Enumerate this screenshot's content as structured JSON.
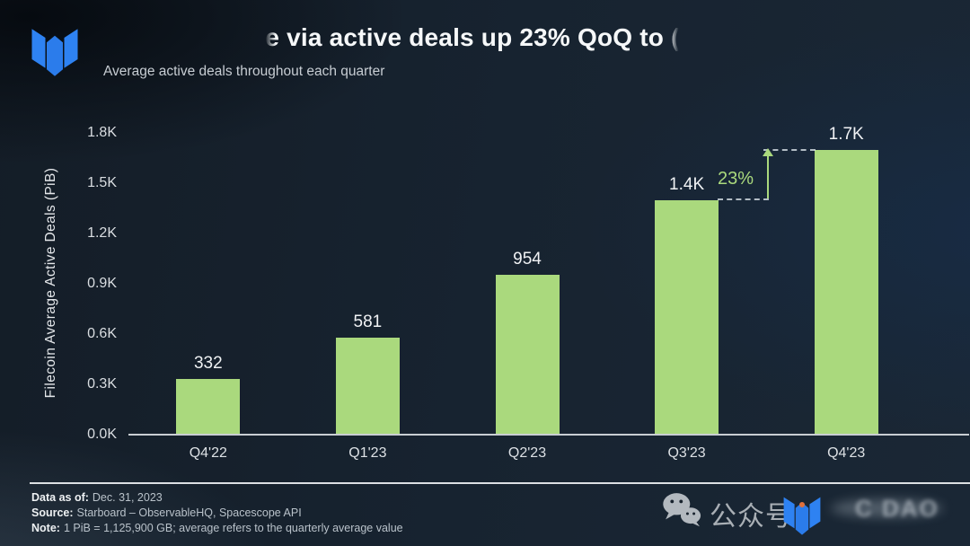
{
  "header": {
    "title_visible": "e via active deals up 23% QoQ to",
    "title_fragment": "(",
    "subtitle": "Average active deals throughout each quarter"
  },
  "chart_data": {
    "type": "bar",
    "categories": [
      "Q4'22",
      "Q1'23",
      "Q2'23",
      "Q3'23",
      "Q4'23"
    ],
    "values": [
      332,
      581,
      954,
      1400,
      1700
    ],
    "bar_labels": [
      "332",
      "581",
      "954",
      "1.4K",
      "1.7K"
    ],
    "ylabel": "Filecoin Average Active Deals (PiB)",
    "ytick_labels": [
      "0.0K",
      "0.3K",
      "0.6K",
      "0.9K",
      "1.2K",
      "1.5K",
      "1.8K"
    ],
    "ytick_values": [
      0,
      300,
      600,
      900,
      1200,
      1500,
      1800
    ],
    "ylim": [
      0,
      1800
    ],
    "bar_color": "#aad97d",
    "grid": false,
    "legend": false,
    "annotation": {
      "label": "23%",
      "from_category": "Q3'23",
      "to_category": "Q4'23",
      "color": "#aad97d"
    }
  },
  "footer": {
    "data_as_of_label": "Data as of:",
    "data_as_of_value": "Dec. 31, 2023",
    "source_label": "Source:",
    "source_value": "Starboard – ObservableHQ, Spacescope API",
    "note_label": "Note:",
    "note_value": "1 PiB = 1,125,900 GB; average refers to the quarterly average value"
  },
  "watermark": {
    "wechat_label": "公众号",
    "faded_text": "C DAO"
  },
  "colors": {
    "bar_green": "#aad97d",
    "logo_blue": "#2e82f2",
    "background_navy": "#172330"
  }
}
